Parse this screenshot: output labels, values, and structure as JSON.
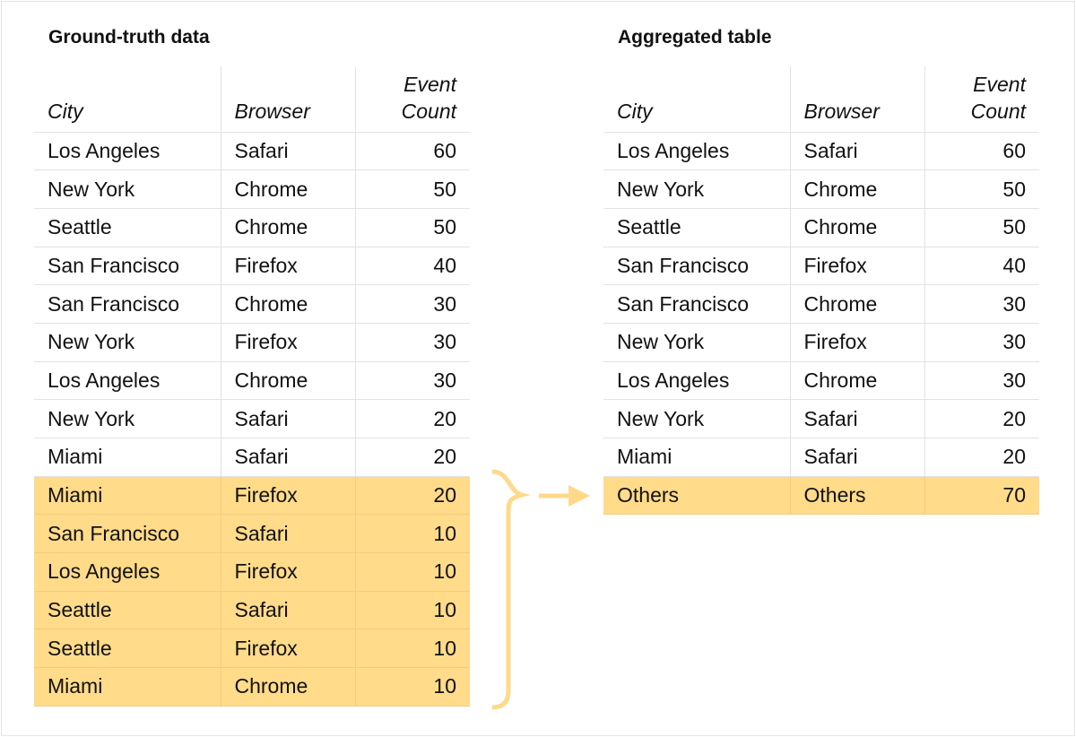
{
  "left": {
    "title": "Ground-truth data",
    "headers": [
      "City",
      "Browser",
      "Event Count"
    ],
    "rows": [
      [
        "Los Angeles",
        "Safari",
        "60"
      ],
      [
        "New York",
        "Chrome",
        "50"
      ],
      [
        "Seattle",
        "Chrome",
        "50"
      ],
      [
        "San Francisco",
        "Firefox",
        "40"
      ],
      [
        "San Francisco",
        "Chrome",
        "30"
      ],
      [
        "New York",
        "Firefox",
        "30"
      ],
      [
        "Los Angeles",
        "Chrome",
        "30"
      ],
      [
        "New York",
        "Safari",
        "20"
      ],
      [
        "Miami",
        "Safari",
        "20"
      ],
      [
        "Miami",
        "Firefox",
        "20"
      ],
      [
        "San Francisco",
        "Safari",
        "10"
      ],
      [
        "Los Angeles",
        "Firefox",
        "10"
      ],
      [
        "Seattle",
        "Safari",
        "10"
      ],
      [
        "Seattle",
        "Firefox",
        "10"
      ],
      [
        "Miami",
        "Chrome",
        "10"
      ]
    ],
    "highlighted_from_row": 9
  },
  "right": {
    "title": "Aggregated table",
    "headers": [
      "City",
      "Browser",
      "Event Count"
    ],
    "rows": [
      [
        "Los Angeles",
        "Safari",
        "60"
      ],
      [
        "New York",
        "Chrome",
        "50"
      ],
      [
        "Seattle",
        "Chrome",
        "50"
      ],
      [
        "San Francisco",
        "Firefox",
        "40"
      ],
      [
        "San Francisco",
        "Chrome",
        "30"
      ],
      [
        "New York",
        "Firefox",
        "30"
      ],
      [
        "Los Angeles",
        "Chrome",
        "30"
      ],
      [
        "New York",
        "Safari",
        "20"
      ],
      [
        "Miami",
        "Safari",
        "20"
      ],
      [
        "Others",
        "Others",
        "70"
      ]
    ],
    "highlighted_from_row": 9
  },
  "colors": {
    "highlight": "#ffdb8a",
    "connector": "#ffd98a"
  }
}
